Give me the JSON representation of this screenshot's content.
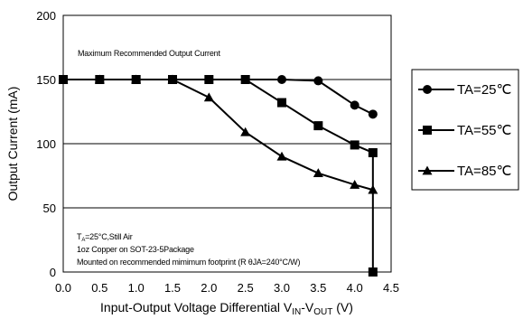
{
  "chart_data": {
    "type": "line",
    "title": "",
    "xlabel": {
      "main": "Input-Output Voltage Differential V",
      "sub1": "IN",
      "dash": "-V",
      "sub2": "OUT",
      "unit": " (V)"
    },
    "ylabel": "Output Current (mA)",
    "xlim": [
      0,
      4.5
    ],
    "ylim": [
      0,
      200
    ],
    "x_ticks": [
      "0.0",
      "0.5",
      "1.0",
      "1.5",
      "2.0",
      "2.5",
      "3.0",
      "3.5",
      "4.0",
      "4.5"
    ],
    "y_ticks": [
      "0",
      "50",
      "100",
      "150",
      "200"
    ],
    "grid": "partial",
    "legend_position": "right",
    "annotations": {
      "top": "Maximum Recommended Output Current",
      "line1_a": "T",
      "line1_sub": "A",
      "line1_b": "=25°C,Still Air",
      "line2": "1oz Copper on SOT-23-5Package",
      "line3": "Mounted on recommended mimimum footprint (R θJA=240°C/W)"
    },
    "series": [
      {
        "name": "TA=25℃",
        "marker": "circle",
        "x": [
          0,
          0.5,
          1.0,
          1.5,
          2.0,
          2.5,
          3.0,
          3.5,
          4.0,
          4.25
        ],
        "values": [
          150,
          150,
          150,
          150,
          150,
          150,
          150,
          149,
          130,
          123
        ]
      },
      {
        "name": "TA=55℃",
        "marker": "square",
        "x": [
          0,
          0.5,
          1.0,
          1.5,
          2.0,
          2.5,
          3.0,
          3.5,
          4.0,
          4.25,
          4.25
        ],
        "values": [
          150,
          150,
          150,
          150,
          150,
          150,
          132,
          114,
          99,
          93,
          0
        ]
      },
      {
        "name": "TA=85℃",
        "marker": "triangle",
        "x": [
          0,
          0.5,
          1.0,
          1.5,
          2.0,
          2.5,
          3.0,
          3.5,
          4.0,
          4.25
        ],
        "values": [
          150,
          150,
          150,
          150,
          136,
          109,
          90,
          77,
          68,
          64
        ]
      }
    ]
  },
  "colors": {
    "line": "#000000",
    "background": "#ffffff"
  }
}
